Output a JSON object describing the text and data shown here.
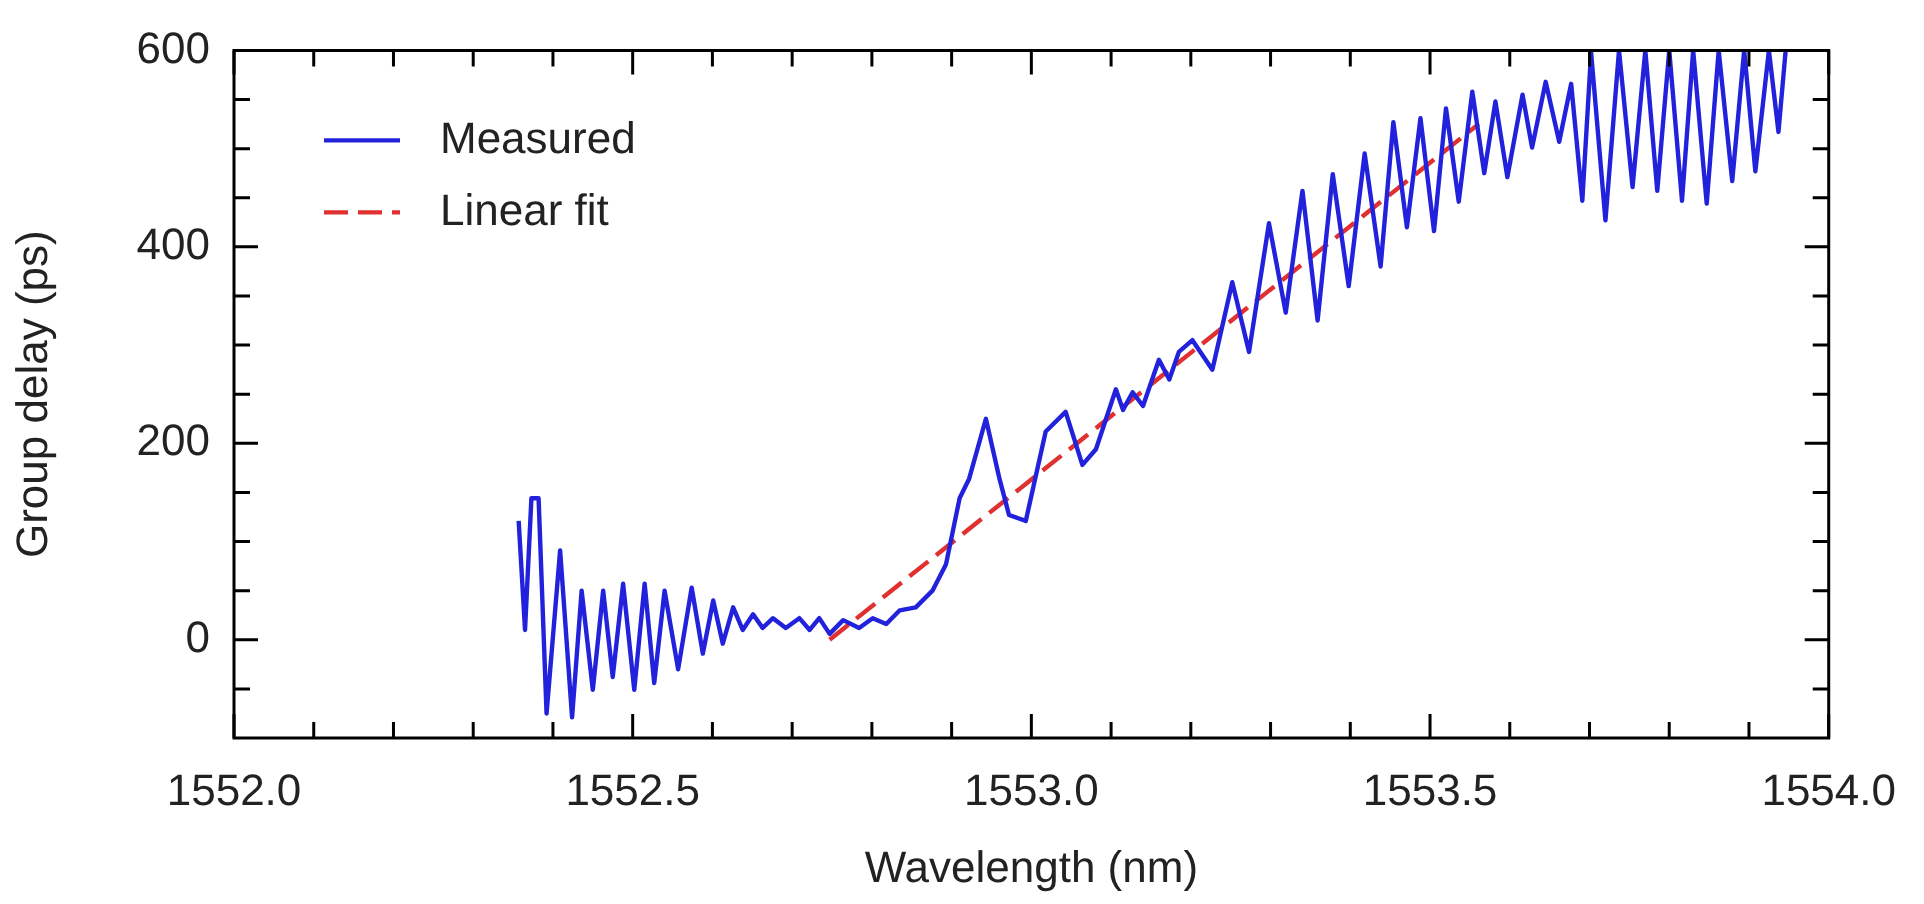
{
  "chart_data": {
    "type": "line",
    "xlabel": "Wavelength (nm)",
    "ylabel": "Group delay (ps)",
    "xlim": [
      1552,
      1554
    ],
    "ylim": [
      -100,
      600
    ],
    "xticks": [
      {
        "value": 1552,
        "label": "1552.0"
      },
      {
        "value": 1552.1,
        "label": null
      },
      {
        "value": 1552.2,
        "label": null
      },
      {
        "value": 1552.3,
        "label": null
      },
      {
        "value": 1552.4,
        "label": null
      },
      {
        "value": 1552.5,
        "label": "1552.5"
      },
      {
        "value": 1552.6,
        "label": null
      },
      {
        "value": 1552.7,
        "label": null
      },
      {
        "value": 1552.8,
        "label": null
      },
      {
        "value": 1552.9,
        "label": null
      },
      {
        "value": 1553,
        "label": "1553.0"
      },
      {
        "value": 1553.1,
        "label": null
      },
      {
        "value": 1553.2,
        "label": null
      },
      {
        "value": 1553.3,
        "label": null
      },
      {
        "value": 1553.4,
        "label": null
      },
      {
        "value": 1553.5,
        "label": "1553.5"
      },
      {
        "value": 1553.6,
        "label": null
      },
      {
        "value": 1553.7,
        "label": null
      },
      {
        "value": 1553.8,
        "label": null
      },
      {
        "value": 1553.9,
        "label": null
      },
      {
        "value": 1554,
        "label": "1554.0"
      }
    ],
    "yticks": [
      {
        "value": -50,
        "label": null
      },
      0,
      {
        "value": 50,
        "label": null
      },
      {
        "value": 100,
        "label": null
      },
      {
        "value": 150,
        "label": null
      },
      200,
      {
        "value": 250,
        "label": null
      },
      {
        "value": 300,
        "label": null
      },
      {
        "value": 350,
        "label": null
      },
      400,
      {
        "value": 450,
        "label": null
      },
      {
        "value": 500,
        "label": null
      },
      {
        "value": 550,
        "label": null
      },
      600
    ],
    "legend": "top left",
    "marker": "none",
    "series": [
      {
        "name": "Measured",
        "color": "#2222dd",
        "line_style": "solid",
        "x": [
          1552.357,
          1552.365,
          1552.373,
          1552.382,
          1552.392,
          1552.409,
          1552.424,
          1552.436,
          1552.45,
          1552.463,
          1552.475,
          1552.488,
          1552.502,
          1552.515,
          1552.527,
          1552.54,
          1552.557,
          1552.574,
          1552.588,
          1552.601,
          1552.613,
          1552.626,
          1552.638,
          1552.651,
          1552.663,
          1552.676,
          1552.692,
          1552.709,
          1552.722,
          1552.734,
          1552.747,
          1552.764,
          1552.784,
          1552.801,
          1552.818,
          1552.835,
          1552.855,
          1552.876,
          1552.893,
          1552.91,
          1552.922,
          1552.943,
          1552.96,
          1552.972,
          1552.993,
          1553.018,
          1553.043,
          1553.064,
          1553.081,
          1553.106,
          1553.115,
          1553.127,
          1553.14,
          1553.16,
          1553.173,
          1553.185,
          1553.202,
          1553.227,
          1553.252,
          1553.273,
          1553.298,
          1553.319,
          1553.34,
          1553.359,
          1553.378,
          1553.398,
          1553.418,
          1553.438,
          1553.454,
          1553.471,
          1553.488,
          1553.505,
          1553.52,
          1553.536,
          1553.553,
          1553.568,
          1553.582,
          1553.597,
          1553.616,
          1553.628,
          1553.645,
          1553.662,
          1553.677,
          1553.691,
          1553.702,
          1553.72,
          1553.737,
          1553.754,
          1553.77,
          1553.785,
          1553.8,
          1553.816,
          1553.83,
          1553.847,
          1553.862,
          1553.879,
          1553.894,
          1553.908,
          1553.925,
          1553.937,
          1553.946
        ],
        "values": [
          121,
          10,
          144,
          144,
          -75,
          91,
          -79,
          50,
          -51,
          50,
          -38,
          57,
          -51,
          57,
          -44,
          50,
          -30,
          53,
          -14,
          40,
          -4,
          33,
          10,
          26,
          12,
          22,
          12,
          22,
          10,
          22,
          6,
          20,
          12,
          22,
          16,
          30,
          33,
          50,
          77,
          144,
          164,
          225,
          164,
          127,
          121,
          212,
          232,
          178,
          194,
          255,
          234,
          252,
          238,
          285,
          265,
          293,
          305,
          275,
          364,
          293,
          424,
          333,
          457,
          325,
          474,
          360,
          495,
          380,
          527,
          420,
          531,
          416,
          541,
          446,
          558,
          475,
          548,
          471,
          555,
          501,
          568,
          507,
          566,
          447,
          598,
          427,
          600,
          461,
          600,
          457,
          600,
          447,
          600,
          444,
          600,
          467,
          600,
          477,
          600,
          517,
          600
        ]
      },
      {
        "name": "Linear fit",
        "color": "#e03030",
        "line_style": "dashed",
        "x": [
          1552.747,
          1553.561
        ],
        "values": [
          0,
          525
        ]
      }
    ]
  }
}
